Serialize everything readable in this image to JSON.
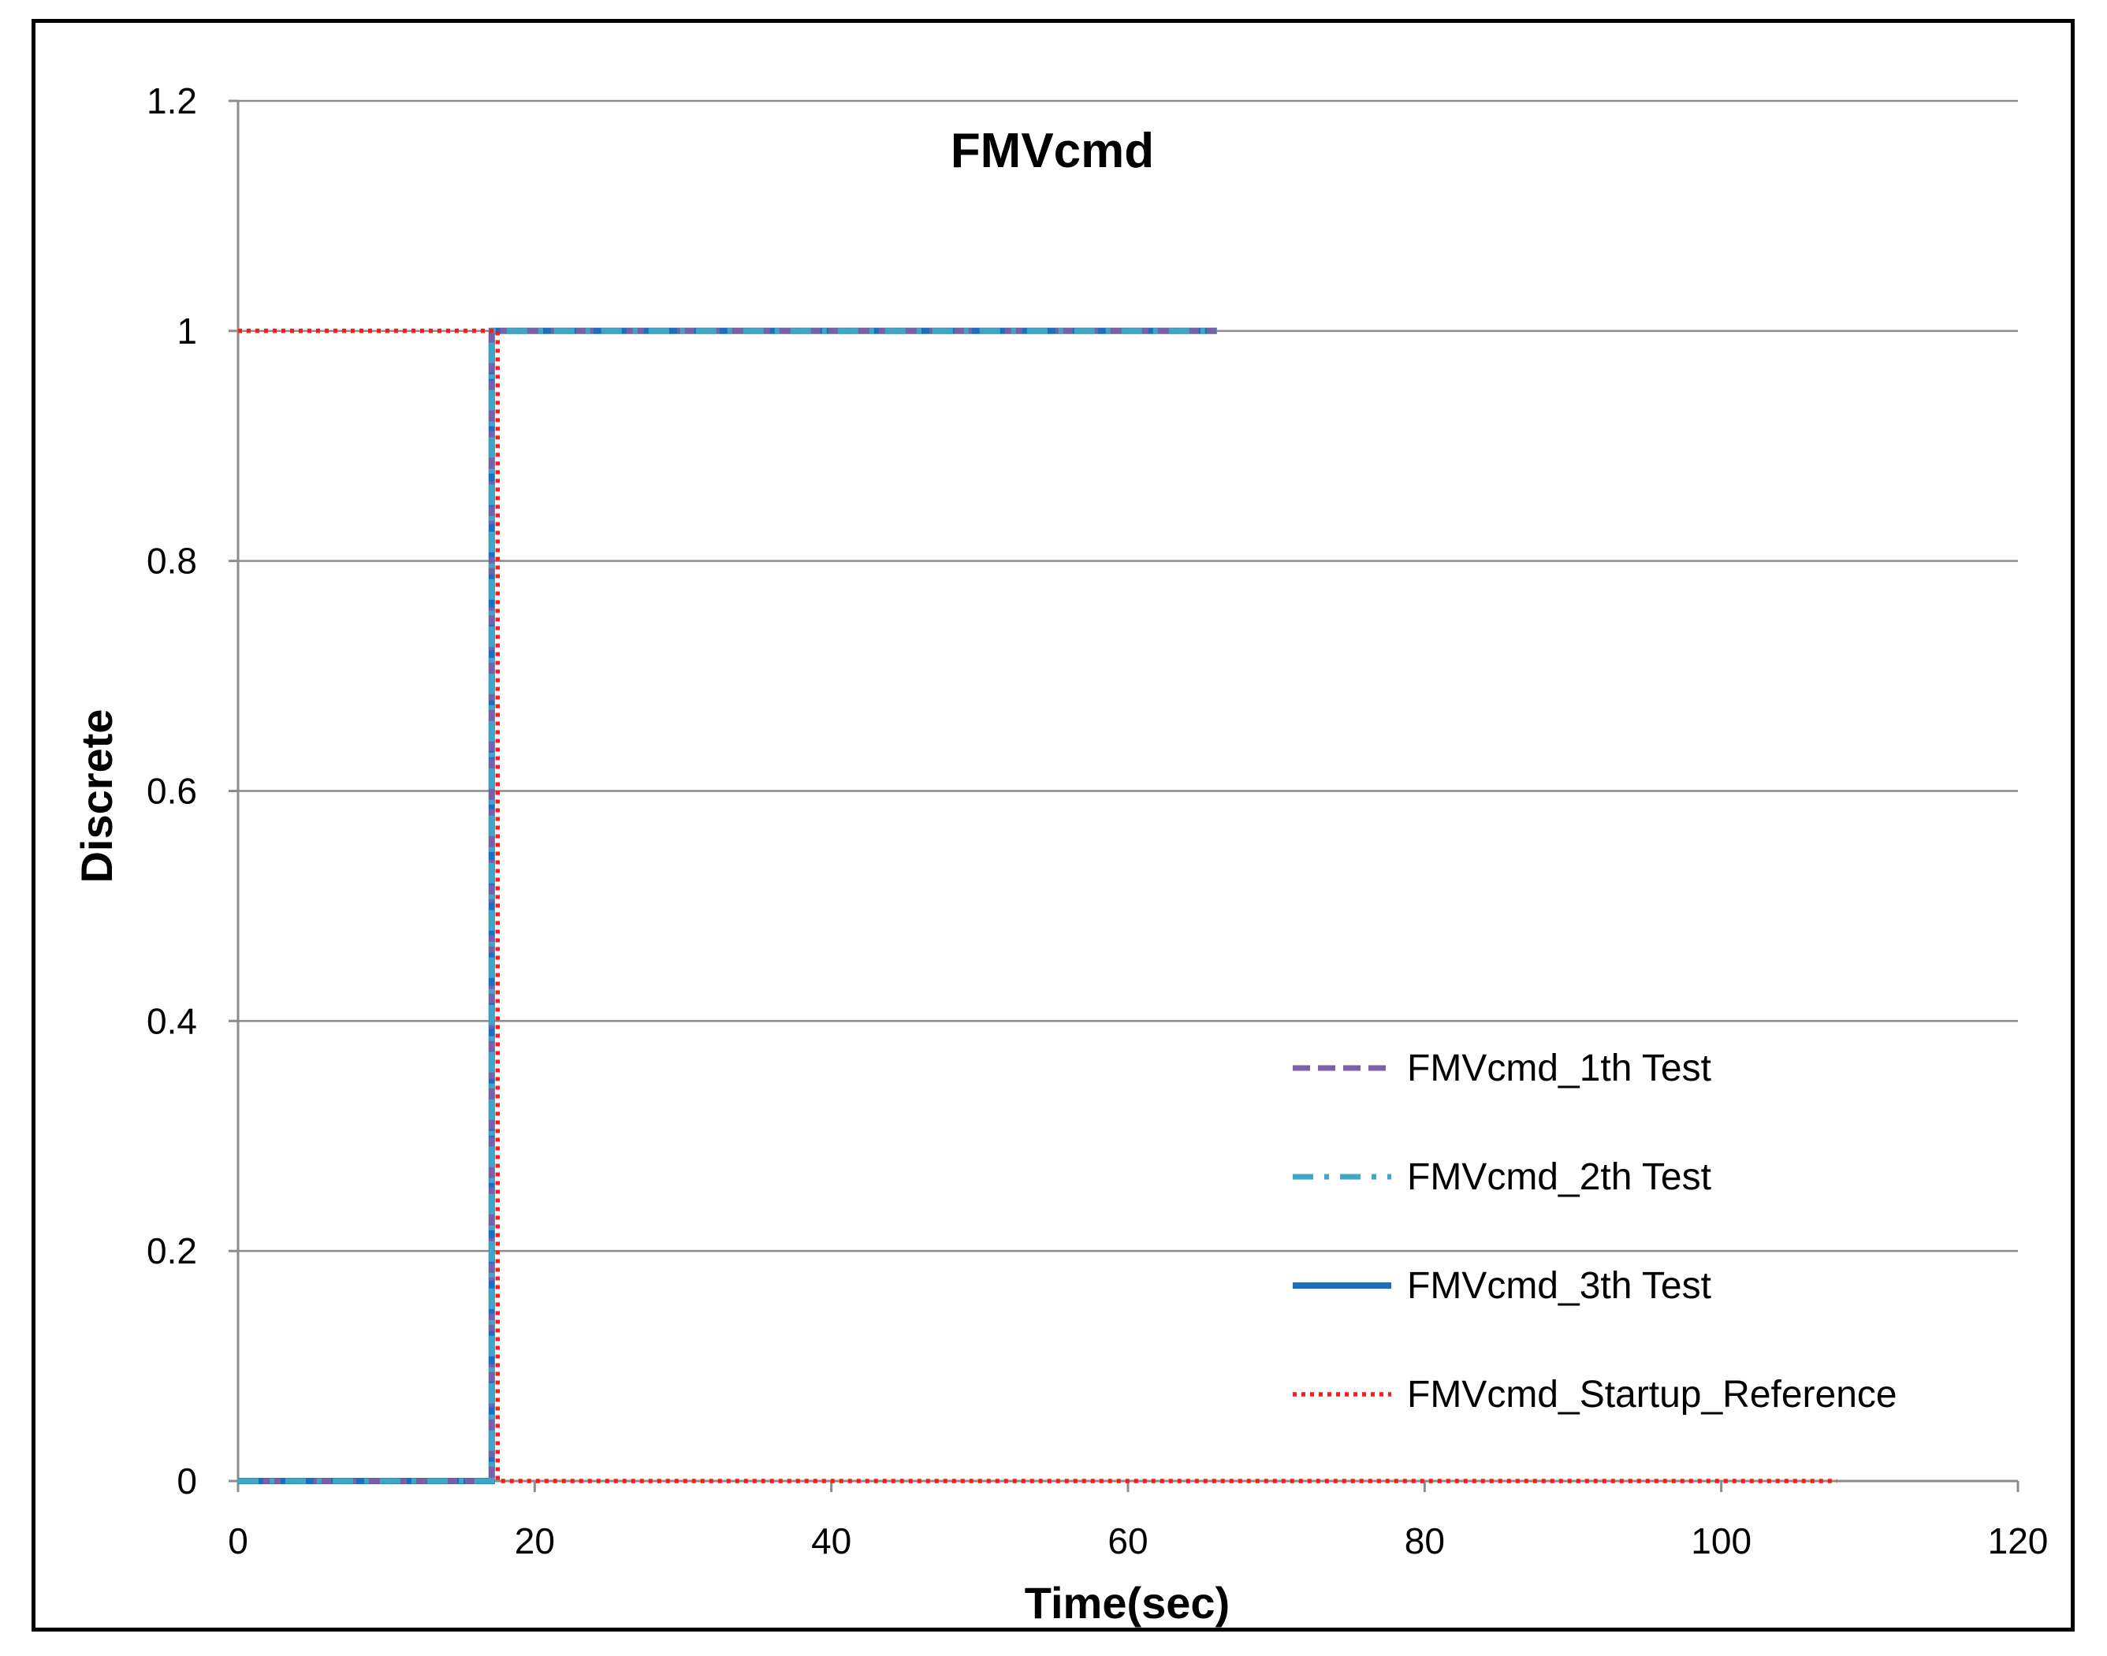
{
  "chart_data": {
    "type": "line",
    "title": "FMVcmd",
    "xlabel": "Time(sec)",
    "ylabel": "Discrete",
    "xlim": [
      0,
      120
    ],
    "ylim": [
      0,
      1.2
    ],
    "x_ticks": [
      0,
      20,
      40,
      60,
      80,
      100,
      120
    ],
    "y_ticks": [
      0,
      0.2,
      0.4,
      0.6,
      0.8,
      1,
      1.2
    ],
    "x_tick_labels": [
      "0",
      "20",
      "40",
      "60",
      "80",
      "100",
      "120"
    ],
    "y_tick_labels": [
      "0",
      "0.2",
      "0.4",
      "0.6",
      "0.8",
      "1",
      "1.2"
    ],
    "grid": "horizontal",
    "legend_position": "lower-right",
    "series": [
      {
        "name": "FMVcmd_1th Test",
        "color": "#7e5ea6",
        "style": "dashed",
        "x": [
          0,
          17.1,
          17.1,
          66
        ],
        "y": [
          0,
          0,
          1,
          1
        ]
      },
      {
        "name": "FMVcmd_2th Test",
        "color": "#3fa7c6",
        "style": "dash-dot",
        "x": [
          0,
          17.1,
          17.1,
          66
        ],
        "y": [
          0,
          0,
          1,
          1
        ]
      },
      {
        "name": "FMVcmd_3th Test",
        "color": "#1a6fc2",
        "style": "solid",
        "x": [
          0,
          17.1,
          17.1,
          66
        ],
        "y": [
          0,
          0,
          1,
          1
        ]
      },
      {
        "name": "FMVcmd_Startup_Reference",
        "color": "#ff1a1a",
        "style": "dotted",
        "x": [
          0,
          17.5,
          17.5,
          107.8
        ],
        "y": [
          1,
          1,
          0,
          0
        ]
      }
    ]
  }
}
